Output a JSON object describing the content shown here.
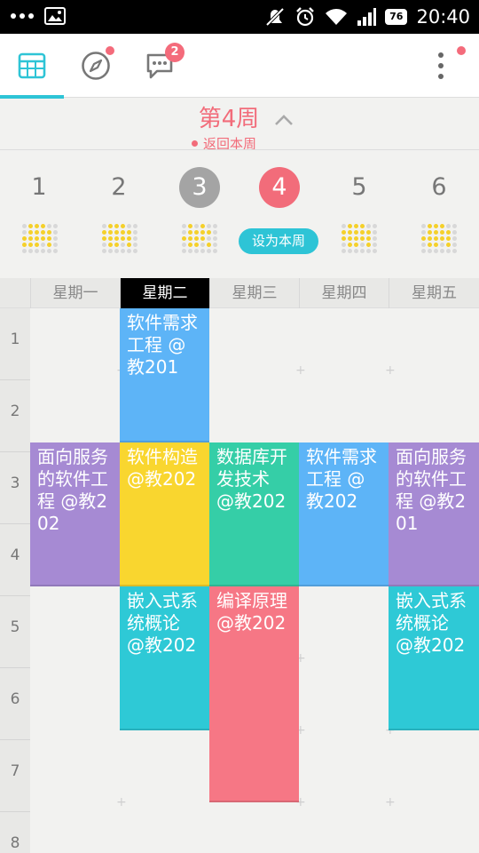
{
  "status_bar": {
    "time": "20:40",
    "battery": "76",
    "icons": [
      "more-dots-icon",
      "image-icon",
      "mute-icon",
      "alarm-icon",
      "wifi-icon",
      "signal-icon",
      "battery-icon"
    ]
  },
  "toolbar": {
    "tabs": [
      "calendar-grid-icon",
      "compass-icon",
      "chat-icon"
    ],
    "chat_badge": "2",
    "menu_icon": "more-vertical-icon",
    "accent": "#2ec4d6"
  },
  "week_header": {
    "title": "第4周",
    "back_label": "返回本周"
  },
  "week_strip": {
    "weeks": [
      "1",
      "2",
      "3",
      "4",
      "5",
      "6"
    ],
    "current_week": "4",
    "set_current_label": "设为本周"
  },
  "days": [
    "星期一",
    "星期二",
    "星期三",
    "星期四",
    "星期五"
  ],
  "today": "星期二",
  "periods": [
    "1",
    "2",
    "3",
    "4",
    "5",
    "6",
    "7",
    "8"
  ],
  "courses": [
    {
      "text": "软件需求工程 @教201",
      "color": "#5db4f7"
    },
    {
      "text": "面向服务的软件工程 @教202",
      "color": "#a68ad3"
    },
    {
      "text": "软件构造 @教202",
      "color": "#f9d62f"
    },
    {
      "text": "数据库开发技术 @教202",
      "color": "#35cea7"
    },
    {
      "text": "软件需求工程 @教202",
      "color": "#5db4f7"
    },
    {
      "text": "面向服务的软件工程 @教201",
      "color": "#a68ad3"
    },
    {
      "text": "嵌入式系统概论 @教202",
      "color": "#2ec9d6"
    },
    {
      "text": "编译原理 @教202",
      "color": "#f67785"
    },
    {
      "text": "嵌入式系统概论 @教202",
      "color": "#2ec9d6"
    }
  ]
}
